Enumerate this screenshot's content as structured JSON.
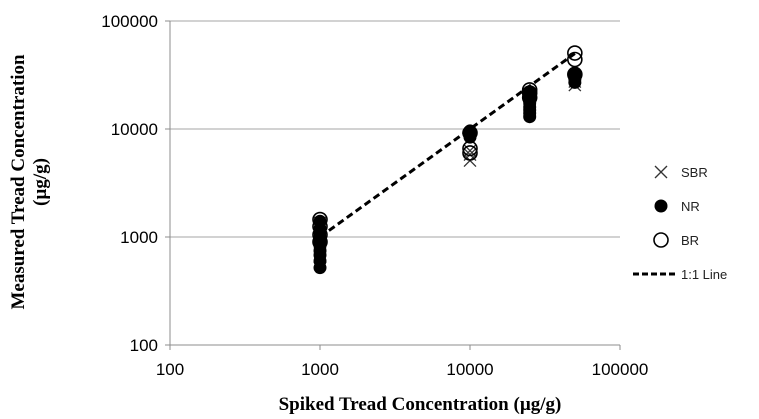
{
  "chart_data": {
    "type": "scatter",
    "title": "",
    "xlabel": "Spiked Tread Concentration (µg/g)",
    "ylabel_lines": [
      "Measured Tread Concentration",
      "(µg/g)"
    ],
    "x_scale": "log",
    "y_scale": "log",
    "xlim": [
      100,
      100000
    ],
    "ylim": [
      100,
      100000
    ],
    "x_ticks": [
      "100",
      "1000",
      "10000",
      "100000"
    ],
    "y_ticks": [
      "100",
      "1000",
      "10000",
      "100000"
    ],
    "grid": "horizontal",
    "legend_position": "right",
    "series": [
      {
        "name": "SBR",
        "marker": "x",
        "points": [
          [
            1000,
            650
          ],
          [
            1000,
            800
          ],
          [
            1000,
            950
          ],
          [
            1000,
            1050
          ],
          [
            1000,
            1200
          ],
          [
            1000,
            1350
          ],
          [
            10000,
            5100
          ],
          [
            10000,
            5800
          ],
          [
            10000,
            6300
          ],
          [
            25000,
            15000
          ],
          [
            25000,
            17000
          ],
          [
            25000,
            19000
          ],
          [
            25000,
            21000
          ],
          [
            50000,
            25500
          ],
          [
            50000,
            27500
          ],
          [
            50000,
            29500
          ]
        ]
      },
      {
        "name": "NR",
        "marker": "filled-circle",
        "points": [
          [
            1000,
            520
          ],
          [
            1000,
            600
          ],
          [
            1000,
            680
          ],
          [
            1000,
            750
          ],
          [
            1000,
            830
          ],
          [
            1000,
            900
          ],
          [
            1000,
            1000
          ],
          [
            1000,
            1100
          ],
          [
            1000,
            1200
          ],
          [
            1000,
            1400
          ],
          [
            10000,
            8400
          ],
          [
            10000,
            8900
          ],
          [
            10000,
            9300
          ],
          [
            10000,
            9600
          ],
          [
            25000,
            13000
          ],
          [
            25000,
            14000
          ],
          [
            25000,
            15000
          ],
          [
            25000,
            16000
          ],
          [
            25000,
            17500
          ],
          [
            25000,
            19000
          ],
          [
            25000,
            20500
          ],
          [
            25000,
            22000
          ],
          [
            50000,
            27000
          ],
          [
            50000,
            29000
          ],
          [
            50000,
            31000
          ],
          [
            50000,
            33000
          ]
        ]
      },
      {
        "name": "BR",
        "marker": "open-circle",
        "points": [
          [
            1000,
            900
          ],
          [
            1000,
            1050
          ],
          [
            1000,
            1250
          ],
          [
            1000,
            1450
          ],
          [
            10000,
            6000
          ],
          [
            10000,
            6600
          ],
          [
            10000,
            9200
          ],
          [
            25000,
            19500
          ],
          [
            25000,
            21500
          ],
          [
            25000,
            23000
          ],
          [
            50000,
            32000
          ],
          [
            50000,
            44000
          ],
          [
            50000,
            50500
          ]
        ]
      }
    ],
    "reference_line": {
      "name": "1:1 Line",
      "style": "dashed",
      "points": [
        [
          1000,
          1000
        ],
        [
          50000,
          50000
        ]
      ]
    }
  }
}
